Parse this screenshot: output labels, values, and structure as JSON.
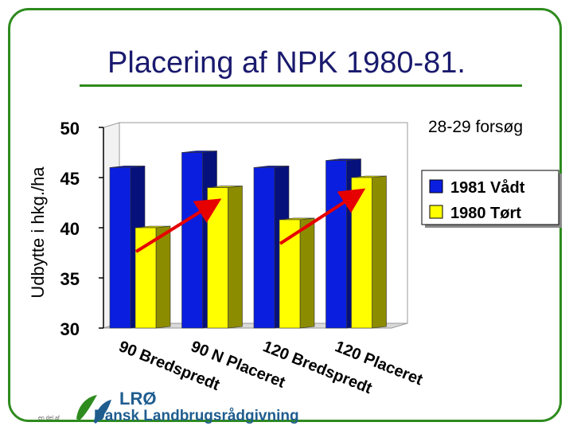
{
  "slide": {
    "title": "Placering af NPK 1980-81.",
    "note": "28-29 forsøg",
    "footer_small": "en del af",
    "logo_main": "LRØ",
    "logo_sub": "Dansk Landbrugsrådgivning"
  },
  "chart_data": {
    "type": "bar",
    "title": "Placering af NPK 1980-81.",
    "ylabel": "Udbytte i hkg./ha",
    "xlabel": "",
    "ylim": [
      30,
      50
    ],
    "yticks": [
      "50",
      "45",
      "40",
      "35",
      "30"
    ],
    "grid": false,
    "legend": "right",
    "categories": [
      "90 Bredspredt",
      "90 N Placeret",
      "120 Bredspredt",
      "120 Placeret"
    ],
    "series": [
      {
        "name": "1981 Vådt",
        "color": "#0a1ee0",
        "values": [
          46.0,
          47.5,
          46.0,
          46.7
        ]
      },
      {
        "name": "1980 Tørt",
        "color": "#ffff00",
        "values": [
          40.0,
          44.0,
          40.8,
          45.0
        ]
      }
    ],
    "annotations": [
      {
        "type": "arrow",
        "from_category": 0,
        "to_category": 1,
        "color": "#e60000"
      },
      {
        "type": "arrow",
        "from_category": 2,
        "to_category": 3,
        "color": "#e60000"
      }
    ]
  }
}
